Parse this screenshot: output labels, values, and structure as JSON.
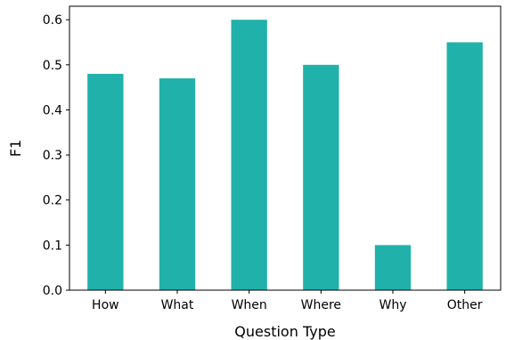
{
  "chart_data": {
    "type": "bar",
    "categories": [
      "How",
      "What",
      "When",
      "Where",
      "Why",
      "Other"
    ],
    "values": [
      0.48,
      0.47,
      0.6,
      0.5,
      0.1,
      0.55
    ],
    "xlabel": "Question Type",
    "ylabel": "F1",
    "ylim": [
      0,
      0.63
    ],
    "yticks": [
      "0.0",
      "0.1",
      "0.2",
      "0.3",
      "0.4",
      "0.5",
      "0.6"
    ],
    "grid": false,
    "bar_color": "#20B2AA"
  }
}
